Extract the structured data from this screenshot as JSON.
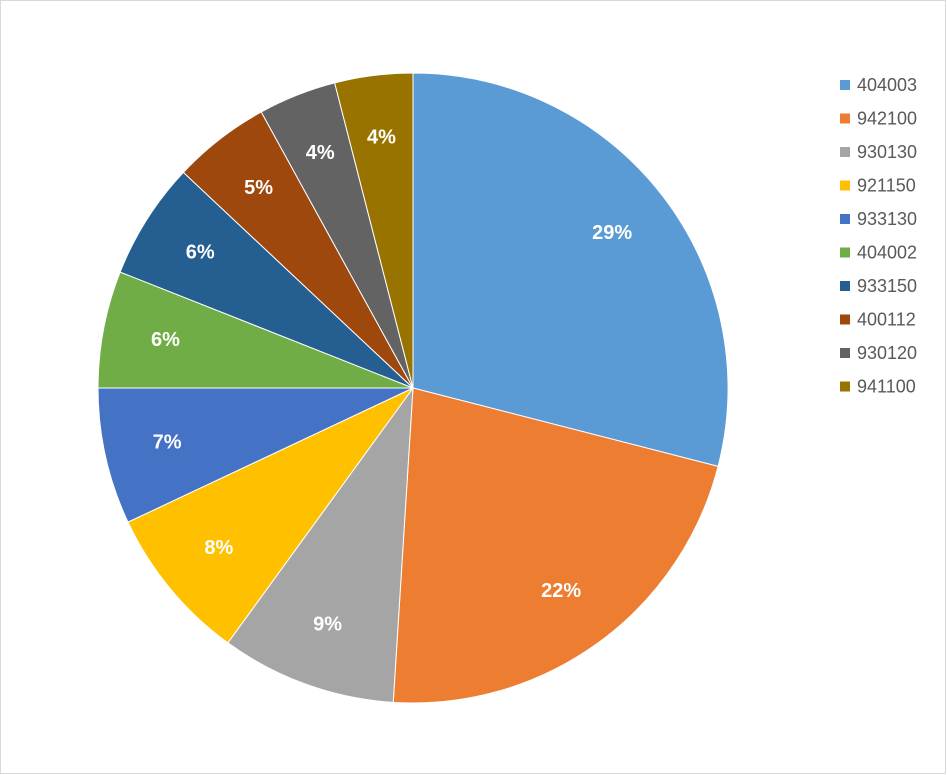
{
  "chart_data": {
    "type": "pie",
    "categories": [
      "404003",
      "942100",
      "930130",
      "921150",
      "933130",
      "404002",
      "933150",
      "400112",
      "930120",
      "941100"
    ],
    "values": [
      29,
      22,
      9,
      8,
      7,
      6,
      6,
      5,
      4,
      4
    ],
    "value_labels": [
      "29%",
      "22%",
      "9%",
      "8%",
      "7%",
      "6%",
      "6%",
      "5%",
      "4%",
      "4%"
    ],
    "colors": [
      "#5b9bd5",
      "#ed7d31",
      "#a5a5a5",
      "#ffc000",
      "#4472c4",
      "#70ad47",
      "#255e91",
      "#9e480e",
      "#636363",
      "#997300"
    ],
    "legend": "right"
  }
}
